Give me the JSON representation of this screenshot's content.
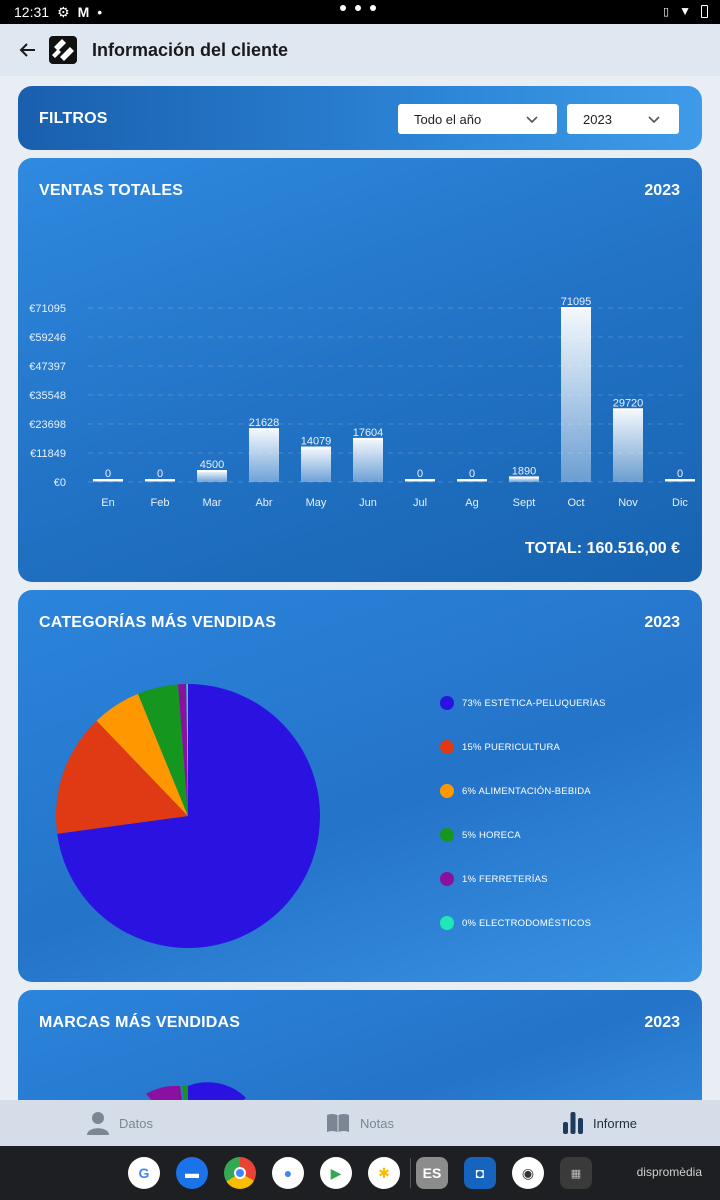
{
  "status_bar": {
    "time": "12:31"
  },
  "app_bar": {
    "title": "Información del cliente"
  },
  "filters": {
    "title": "FILTROS",
    "period": "Todo el año",
    "year": "2023"
  },
  "sales_card": {
    "title": "VENTAS TOTALES",
    "year": "2023",
    "total": "TOTAL: 160.516,00 €"
  },
  "chart_data": [
    {
      "type": "bar",
      "title": "VENTAS TOTALES",
      "categories": [
        "En",
        "Feb",
        "Mar",
        "Abr",
        "May",
        "Jun",
        "Jul",
        "Ag",
        "Sept",
        "Oct",
        "Nov",
        "Dic"
      ],
      "values": [
        0,
        0,
        4500,
        21628,
        14079,
        17604,
        0,
        0,
        1890,
        71095,
        29720,
        0
      ],
      "y_ticks": [
        "€0",
        "€11849",
        "€23698",
        "€35548",
        "€47397",
        "€59246",
        "€71095"
      ],
      "ylim": [
        0,
        71095
      ],
      "grid": true
    },
    {
      "type": "pie",
      "title": "CATEGORÍAS MÁS VENDIDAS",
      "slices": [
        {
          "label": "73% ESTÉTICA-PELUQUERÍAS",
          "value": 73,
          "color": "#2a12e0"
        },
        {
          "label": "15% PUERICULTURA",
          "value": 15,
          "color": "#e03a14"
        },
        {
          "label": "6% ALIMENTACIÓN-BEBIDA",
          "value": 6,
          "color": "#ff9800"
        },
        {
          "label": "5% HORECA",
          "value": 5,
          "color": "#15961e"
        },
        {
          "label": "1% FERRETERÍAS",
          "value": 1,
          "color": "#8a119f"
        },
        {
          "label": "0% ELECTRODOMÉSTICOS",
          "value": 0.2,
          "color": "#1de9b6"
        }
      ]
    }
  ],
  "categories_card": {
    "title": "CATEGORÍAS MÁS VENDIDAS",
    "year": "2023"
  },
  "brands_card": {
    "title": "MARCAS MÁS VENDIDAS",
    "year": "2023"
  },
  "bottom_nav": {
    "datos": "Datos",
    "notas": "Notas",
    "informe": "Informe"
  },
  "dock": {
    "brand": "dispromèdia"
  }
}
